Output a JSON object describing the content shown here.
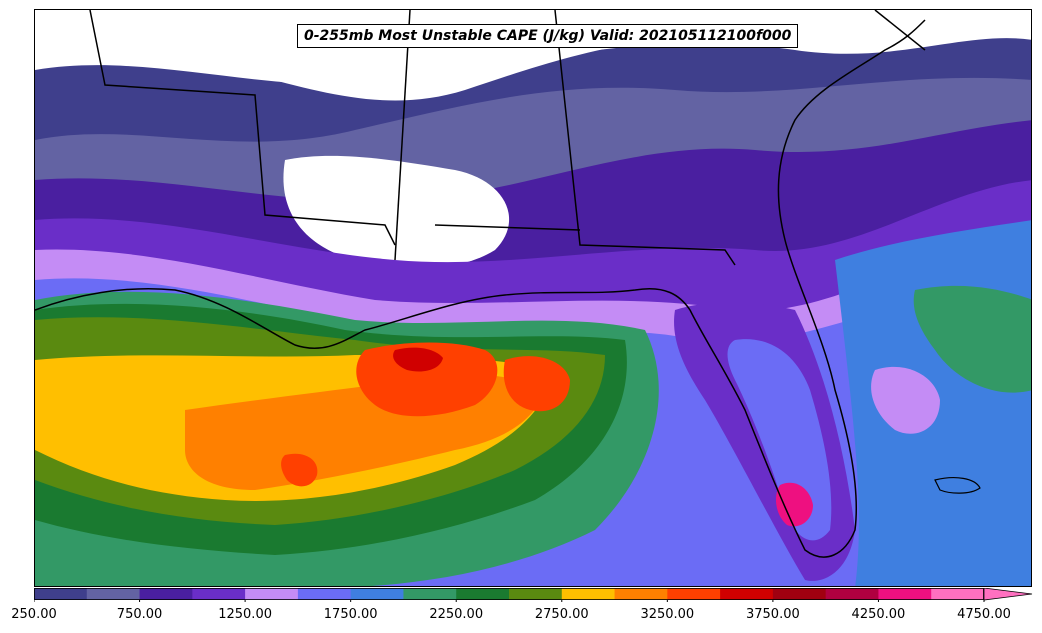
{
  "title": "0-255mb Most Unstable CAPE (J/kg) Valid: 202105112100f000",
  "colorbar": {
    "min": 250,
    "max": 4750,
    "step": 250,
    "extend": "max",
    "tick_labels": [
      "250.00",
      "750.00",
      "1250.00",
      "1750.00",
      "2250.00",
      "2750.00",
      "3250.00",
      "3750.00",
      "4250.00",
      "4750.00"
    ],
    "colors": [
      "#3f3f8c",
      "#6363a3",
      "#4a1fa0",
      "#6a2ec8",
      "#c48cf5",
      "#6b6cf5",
      "#3f7fe0",
      "#339966",
      "#1a7a30",
      "#5a8a10",
      "#ffbf00",
      "#ff8000",
      "#ff4000",
      "#d00000",
      "#a00010",
      "#b00040",
      "#ee1080",
      "#ff70c0"
    ],
    "extend_color": "#ff70c0"
  },
  "map": {
    "background_color": "#ffffff",
    "border_color": "#000000"
  }
}
